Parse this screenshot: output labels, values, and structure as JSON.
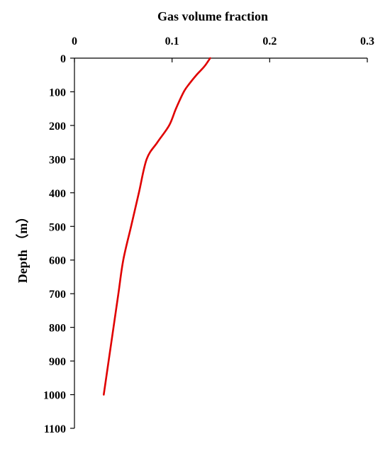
{
  "chart_data": {
    "type": "line",
    "title": "",
    "xlabel": "Gas volume fraction",
    "ylabel": "Depth （m）",
    "x_axis_position": "top",
    "y_inverted": true,
    "xlim": [
      0,
      0.3
    ],
    "ylim": [
      0,
      1100
    ],
    "x_ticks": [
      0,
      0.1,
      0.2,
      0.3
    ],
    "x_tick_labels": [
      "0",
      "0.1",
      "0.2",
      "0.3"
    ],
    "y_ticks": [
      0,
      100,
      200,
      300,
      400,
      500,
      600,
      700,
      800,
      900,
      1000,
      1100
    ],
    "y_tick_labels": [
      "0",
      "100",
      "200",
      "300",
      "400",
      "500",
      "600",
      "700",
      "800",
      "900",
      "1000",
      "1100"
    ],
    "grid": false,
    "series": [
      {
        "color": "#e00000",
        "points": [
          [
            0.139,
            0
          ],
          [
            0.133,
            25
          ],
          [
            0.125,
            50
          ],
          [
            0.118,
            75
          ],
          [
            0.112,
            100
          ],
          [
            0.104,
            150
          ],
          [
            0.097,
            200
          ],
          [
            0.085,
            250
          ],
          [
            0.074,
            300
          ],
          [
            0.066,
            400
          ],
          [
            0.058,
            500
          ],
          [
            0.05,
            600
          ],
          [
            0.045,
            700
          ],
          [
            0.04,
            800
          ],
          [
            0.035,
            900
          ],
          [
            0.03,
            1000
          ]
        ]
      }
    ]
  }
}
